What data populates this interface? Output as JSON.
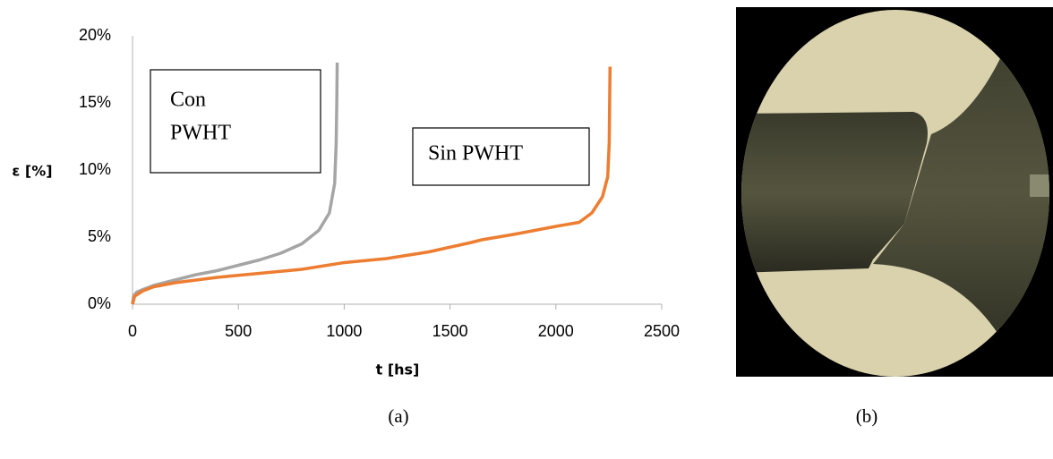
{
  "chart_data": {
    "type": "line",
    "x_label": "t [hs]",
    "y_label": "ε [%]",
    "xlim": [
      0,
      2500
    ],
    "xticks": [
      0,
      500,
      1000,
      1500,
      2000,
      2500
    ],
    "ylim": [
      0,
      20
    ],
    "yticks": [
      {
        "value": 0,
        "label": "0%"
      },
      {
        "value": 5,
        "label": "5%"
      },
      {
        "value": 10,
        "label": "10%"
      },
      {
        "value": 15,
        "label": "15%"
      },
      {
        "value": 20,
        "label": "20%"
      }
    ],
    "grid": false,
    "series": [
      {
        "color": "#a5a5a5",
        "x": [
          0,
          5,
          20,
          50,
          100,
          200,
          300,
          400,
          500,
          600,
          700,
          800,
          880,
          930,
          955,
          962,
          965,
          967
        ],
        "values": [
          0,
          0.6,
          0.9,
          1.1,
          1.4,
          1.8,
          2.2,
          2.5,
          2.9,
          3.3,
          3.8,
          4.5,
          5.5,
          6.8,
          9,
          12,
          15,
          18
        ]
      },
      {
        "color": "#ed7d31",
        "x": [
          0,
          10,
          50,
          100,
          200,
          400,
          600,
          800,
          1000,
          1200,
          1400,
          1600,
          1650,
          1800,
          2000,
          2110,
          2170,
          2220,
          2245,
          2252,
          2254,
          2256
        ],
        "values": [
          0,
          0.6,
          1.0,
          1.3,
          1.6,
          2.0,
          2.3,
          2.6,
          3.1,
          3.4,
          3.9,
          4.6,
          4.8,
          5.2,
          5.8,
          6.1,
          6.8,
          8,
          9.5,
          12,
          15,
          17.7
        ]
      }
    ],
    "annotations": [
      [
        "Con",
        "PWHT"
      ],
      [
        "Sin PWHT"
      ]
    ]
  },
  "captions": [
    "(a)",
    "(b)"
  ]
}
